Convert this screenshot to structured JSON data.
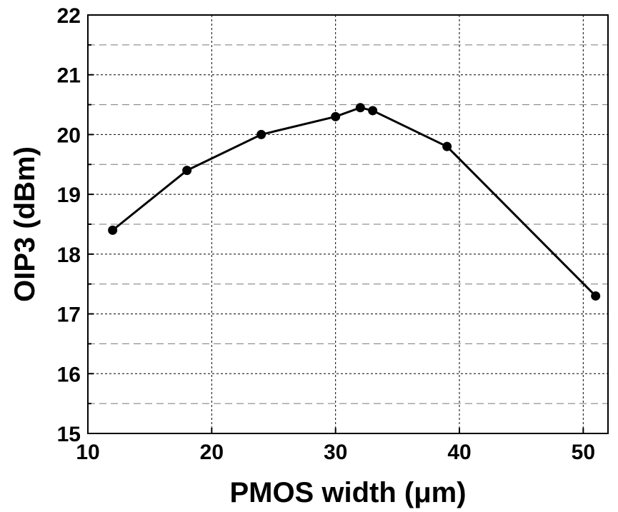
{
  "chart_data": {
    "type": "line",
    "title": "",
    "xlabel": "PMOS width (μm)",
    "ylabel": "OIP3 (dBm)",
    "xlim": [
      10,
      52
    ],
    "ylim": [
      15,
      22
    ],
    "xticks": [
      10,
      20,
      30,
      40,
      50
    ],
    "yticks": [
      15,
      16,
      17,
      18,
      19,
      20,
      21,
      22
    ],
    "xtick_labels": [
      "10",
      "20",
      "30",
      "40",
      "50"
    ],
    "ytick_labels": [
      "15",
      "16",
      "17",
      "18",
      "19",
      "20",
      "21",
      "22"
    ],
    "grid": true,
    "legend": "none",
    "series": [
      {
        "color": "#000000",
        "marker": "filled-circle",
        "x": [
          12,
          18,
          24,
          30,
          32,
          33,
          39,
          51
        ],
        "y": [
          18.4,
          19.4,
          20.0,
          20.3,
          20.45,
          20.4,
          19.8,
          17.3
        ]
      }
    ]
  }
}
